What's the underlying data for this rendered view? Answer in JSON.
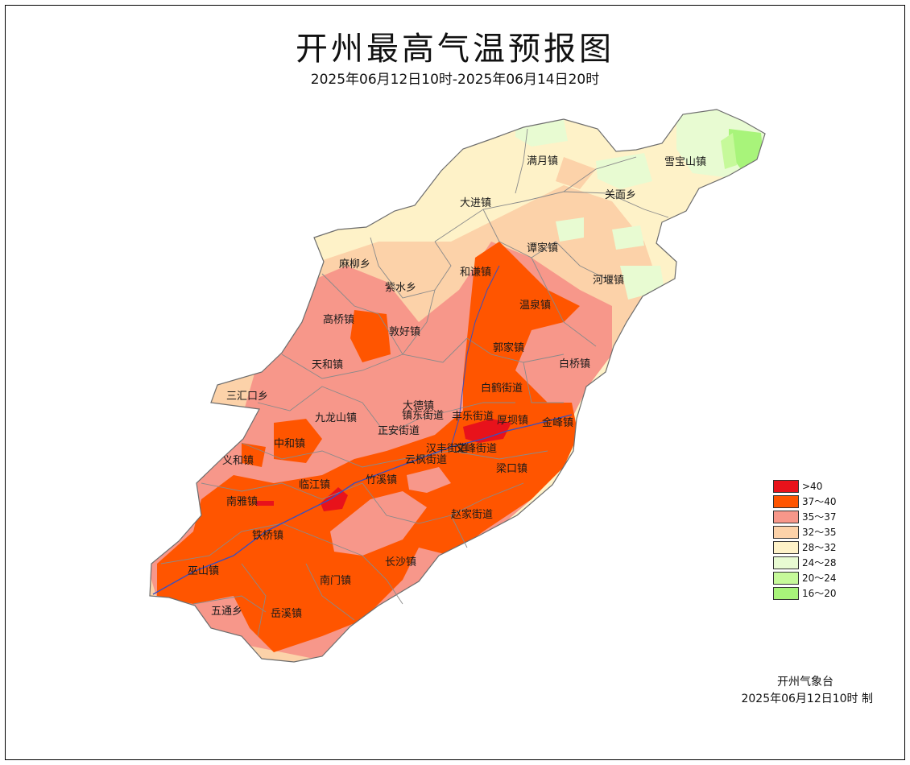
{
  "title": "开州最高气温预报图",
  "subtitle": "2025年06月12日10时-2025年06月14日20时",
  "legend": [
    {
      "label": ">40",
      "color": "#e8121b"
    },
    {
      "label": "37～40",
      "color": "#ff5500"
    },
    {
      "label": "35～37",
      "color": "#f7978a"
    },
    {
      "label": "32～35",
      "color": "#fcd2a9"
    },
    {
      "label": "28～32",
      "color": "#fef2c8"
    },
    {
      "label": "24～28",
      "color": "#e8fbd2"
    },
    {
      "label": "20～24",
      "color": "#c6f99a"
    },
    {
      "label": "16～20",
      "color": "#a8f47a"
    }
  ],
  "towns": [
    {
      "id": "manyue",
      "name": "满月镇"
    },
    {
      "id": "xuebaoshan",
      "name": "雪宝山镇"
    },
    {
      "id": "dajin",
      "name": "大进镇"
    },
    {
      "id": "guanmian",
      "name": "关面乡"
    },
    {
      "id": "tanjia",
      "name": "谭家镇"
    },
    {
      "id": "maliu",
      "name": "麻柳乡"
    },
    {
      "id": "heqian",
      "name": "和谦镇"
    },
    {
      "id": "heyan",
      "name": "河堰镇"
    },
    {
      "id": "zishui",
      "name": "紫水乡"
    },
    {
      "id": "wenquan",
      "name": "温泉镇"
    },
    {
      "id": "gaoqiao",
      "name": "高桥镇"
    },
    {
      "id": "minhao",
      "name": "敦好镇"
    },
    {
      "id": "guojia",
      "name": "郭家镇"
    },
    {
      "id": "tianhe",
      "name": "天和镇"
    },
    {
      "id": "baiqiao",
      "name": "白桥镇"
    },
    {
      "id": "baihe",
      "name": "白鹤街道"
    },
    {
      "id": "sanhuikou",
      "name": "三汇口乡"
    },
    {
      "id": "dade",
      "name": "大德镇"
    },
    {
      "id": "zhendong",
      "name": "镇东街道"
    },
    {
      "id": "fengle",
      "name": "丰乐街道"
    },
    {
      "id": "houba",
      "name": "厚坝镇"
    },
    {
      "id": "jinfeng",
      "name": "金峰镇"
    },
    {
      "id": "jiulongshan",
      "name": "九龙山镇"
    },
    {
      "id": "zhengan",
      "name": "正安街道"
    },
    {
      "id": "zhonghe",
      "name": "中和镇"
    },
    {
      "id": "hanfeng",
      "name": "汉丰街道"
    },
    {
      "id": "wenfeng",
      "name": "文峰街道"
    },
    {
      "id": "yunfeng",
      "name": "云枫街道"
    },
    {
      "id": "yihe",
      "name": "义和镇"
    },
    {
      "id": "liangkou",
      "name": "梁口镇"
    },
    {
      "id": "linjiang",
      "name": "临江镇"
    },
    {
      "id": "zhuxi",
      "name": "竹溪镇"
    },
    {
      "id": "nanya",
      "name": "南雅镇"
    },
    {
      "id": "zhaojia",
      "name": "赵家街道"
    },
    {
      "id": "tieqiao",
      "name": "铁桥镇"
    },
    {
      "id": "changsha",
      "name": "长沙镇"
    },
    {
      "id": "wushan",
      "name": "巫山镇"
    },
    {
      "id": "nanmen",
      "name": "南门镇"
    },
    {
      "id": "wutong",
      "name": "五通乡"
    },
    {
      "id": "yuexi",
      "name": "岳溪镇"
    }
  ],
  "footer": {
    "organization": "开州气象台",
    "issued": "2025年06月12日10时  制"
  }
}
